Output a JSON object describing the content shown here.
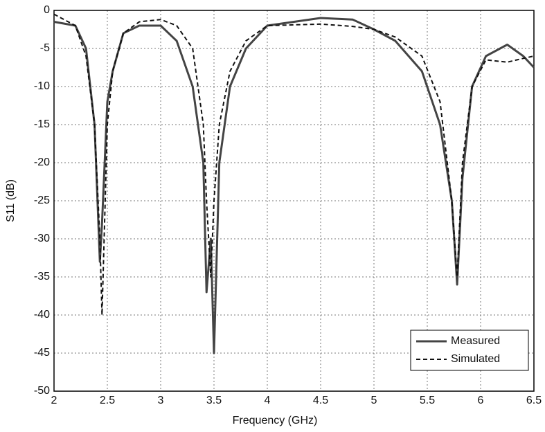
{
  "chart_data": {
    "type": "line",
    "x_label": "Frequency (GHz)",
    "y_label": "S11 (dB)",
    "x": [
      2,
      2.2,
      2.3,
      2.38,
      2.43,
      2.45,
      2.5,
      2.55,
      2.65,
      2.8,
      3.0,
      3.15,
      3.3,
      3.4,
      3.43,
      3.47,
      3.5,
      3.55,
      3.65,
      3.8,
      4.0,
      4.5,
      4.8,
      5.0,
      5.2,
      5.45,
      5.62,
      5.73,
      5.78,
      5.83,
      5.92,
      6.05,
      6.25,
      6.4,
      6.5
    ],
    "series": [
      {
        "name": "Measured",
        "color": "#444444",
        "dash": false,
        "values": [
          -1.5,
          -2,
          -5,
          -15,
          -33,
          -28,
          -12,
          -8,
          -3,
          -2,
          -2,
          -4,
          -10,
          -20,
          -37,
          -30,
          -45,
          -20,
          -10,
          -5,
          -2,
          -1,
          -1.2,
          -2.5,
          -4,
          -8,
          -15,
          -25,
          -36,
          -22,
          -10,
          -6,
          -4.5,
          -6,
          -7.5
        ]
      },
      {
        "name": "Simulated",
        "color": "#111111",
        "dash": true,
        "values": [
          -0.5,
          -2,
          -6,
          -15,
          -30,
          -40,
          -15,
          -8,
          -3,
          -1.5,
          -1.2,
          -2,
          -5,
          -15,
          -25,
          -35,
          -25,
          -15,
          -8,
          -4,
          -2,
          -1.8,
          -2.1,
          -2.5,
          -3.5,
          -6,
          -12,
          -25,
          -35,
          -20,
          -10,
          -6.5,
          -6.8,
          -6.3,
          -6
        ]
      }
    ],
    "xlim": [
      2,
      6.5
    ],
    "ylim": [
      -50,
      0
    ],
    "xticks": [
      2,
      2.5,
      3,
      3.5,
      4,
      4.5,
      5,
      5.5,
      6,
      6.5
    ],
    "yticks": [
      -50,
      -45,
      -40,
      -35,
      -30,
      -25,
      -20,
      -15,
      -10,
      -5,
      0
    ],
    "grid": true,
    "legend": "lower right"
  }
}
